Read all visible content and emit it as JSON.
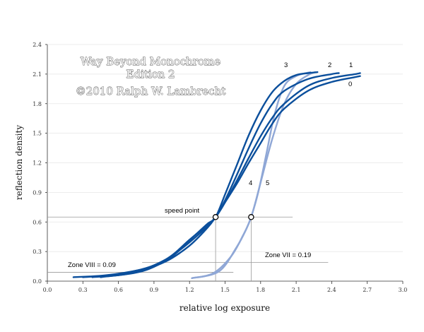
{
  "chart_data": {
    "type": "line",
    "xlabel": "relative log exposure",
    "ylabel": "reflection density",
    "xlim": [
      0.0,
      3.0
    ],
    "ylim": [
      0.0,
      2.4
    ],
    "xticks": [
      "0.0",
      "0.3",
      "0.6",
      "0.9",
      "1.2",
      "1.5",
      "1.8",
      "2.1",
      "2.4",
      "2.7",
      "3.0"
    ],
    "yticks": [
      "0.0",
      "0.3",
      "0.6",
      "0.9",
      "1.2",
      "1.5",
      "1.8",
      "2.1",
      "2.4"
    ],
    "grid": "horizontal",
    "watermark": [
      "Way Beyond Monochrome",
      "Edition 2",
      "©2010   Ralph W. Lambrecht"
    ],
    "series": [
      {
        "name": "0",
        "color": "#0b4f9c",
        "x": [
          0.22,
          0.5,
          0.8,
          1.0,
          1.2,
          1.35,
          1.42,
          1.5,
          1.6,
          1.7,
          1.8,
          1.9,
          2.0,
          2.2,
          2.4,
          2.6,
          2.64
        ],
        "y": [
          0.04,
          0.06,
          0.12,
          0.2,
          0.36,
          0.54,
          0.65,
          0.8,
          0.99,
          1.2,
          1.4,
          1.6,
          1.75,
          1.93,
          2.02,
          2.07,
          2.08
        ]
      },
      {
        "name": "1",
        "color": "#0b4f9c",
        "x": [
          0.3,
          0.6,
          0.9,
          1.1,
          1.3,
          1.42,
          1.5,
          1.6,
          1.7,
          1.8,
          1.9,
          2.0,
          2.2,
          2.4,
          2.6,
          2.64
        ],
        "y": [
          0.04,
          0.07,
          0.16,
          0.3,
          0.5,
          0.65,
          0.8,
          1.02,
          1.25,
          1.47,
          1.66,
          1.8,
          1.98,
          2.06,
          2.1,
          2.11
        ]
      },
      {
        "name": "2",
        "color": "#0b4f9c",
        "x": [
          0.38,
          0.7,
          1.0,
          1.2,
          1.35,
          1.42,
          1.5,
          1.6,
          1.7,
          1.8,
          1.9,
          2.0,
          2.2,
          2.4,
          2.46
        ],
        "y": [
          0.04,
          0.08,
          0.22,
          0.42,
          0.57,
          0.65,
          0.82,
          1.08,
          1.35,
          1.6,
          1.8,
          1.93,
          2.05,
          2.1,
          2.11
        ]
      },
      {
        "name": "3",
        "color": "#0b4f9c",
        "x": [
          0.45,
          0.8,
          1.05,
          1.25,
          1.35,
          1.42,
          1.5,
          1.6,
          1.7,
          1.8,
          1.9,
          2.0,
          2.1,
          2.2,
          2.28
        ],
        "y": [
          0.04,
          0.1,
          0.25,
          0.47,
          0.58,
          0.65,
          0.88,
          1.18,
          1.48,
          1.73,
          1.92,
          2.03,
          2.09,
          2.11,
          2.12
        ]
      },
      {
        "name": "4",
        "color": "#8fa7d6",
        "x": [
          1.22,
          1.4,
          1.55,
          1.65,
          1.72,
          1.8,
          1.9,
          2.0,
          2.1,
          2.2,
          2.26
        ],
        "y": [
          0.03,
          0.08,
          0.25,
          0.46,
          0.65,
          1.0,
          1.45,
          1.8,
          2.0,
          2.09,
          2.12
        ]
      },
      {
        "name": "5",
        "color": "#8fa7d6",
        "x": [
          1.22,
          1.45,
          1.6,
          1.68,
          1.72,
          1.78,
          1.85,
          1.92,
          2.0,
          2.1,
          2.22
        ],
        "y": [
          0.03,
          0.1,
          0.35,
          0.53,
          0.65,
          0.9,
          1.3,
          1.7,
          1.98,
          2.08,
          2.12
        ]
      }
    ],
    "speed_points": [
      {
        "x": 1.42,
        "y": 0.65
      },
      {
        "x": 1.72,
        "y": 0.65
      }
    ],
    "speed_point_label": "speed point",
    "zone_marks": [
      {
        "label": "Zone VIII = 0.09",
        "y": 0.09,
        "x_from": 0.0,
        "x_to": 1.57
      },
      {
        "label": "Zone VII = 0.19",
        "y": 0.19,
        "x_from": 0.8,
        "x_to": 2.37
      }
    ]
  }
}
